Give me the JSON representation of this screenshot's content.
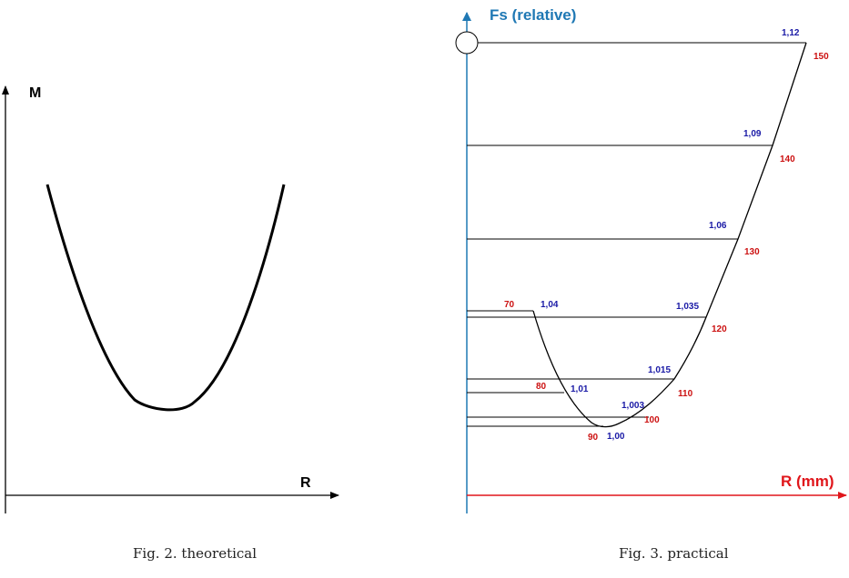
{
  "colors": {
    "black": "#000000",
    "blue_axis": "#1f78b4",
    "red_axis": "#e0161b",
    "blue_label": "#1a1aa6",
    "red_label": "#cc1111"
  },
  "fig2": {
    "caption": "Fig. 2. theoretical",
    "y_label": "M",
    "x_label": "R"
  },
  "fig3": {
    "caption": "Fig. 3. practical",
    "y_label": "Fs (relative)",
    "x_label": "R (mm)",
    "fs_values": [
      "1,12",
      "1,09",
      "1,06",
      "1,035",
      "1,04",
      "1,015",
      "1,01",
      "1,003",
      "1,00"
    ],
    "r_values": [
      "150",
      "140",
      "130",
      "120",
      "70",
      "110",
      "80",
      "100",
      "90"
    ]
  }
}
